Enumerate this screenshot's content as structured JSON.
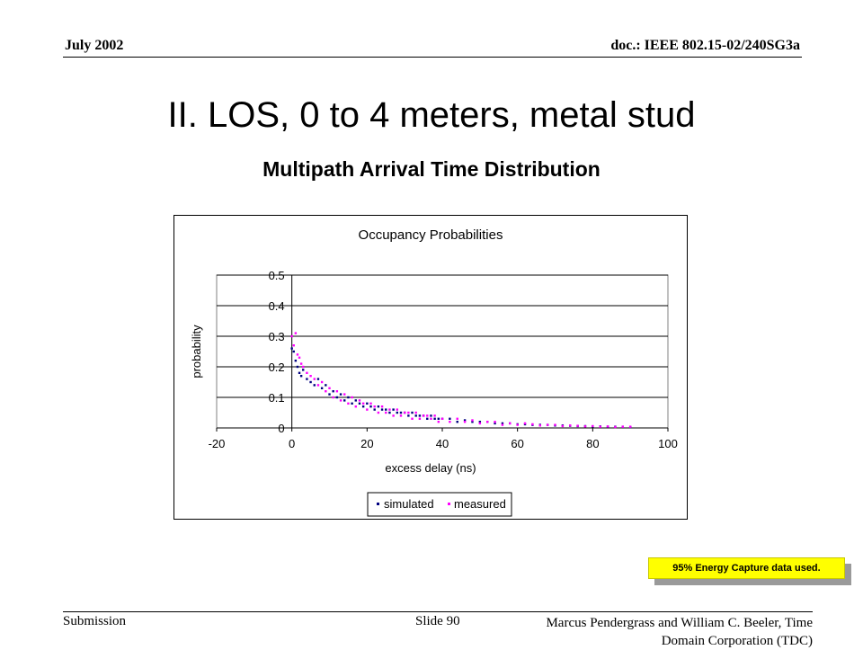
{
  "header": {
    "date": "July 2002",
    "doc": "doc.: IEEE 802.15-02/240SG3a"
  },
  "slide": {
    "title": "II.  LOS, 0 to 4 meters, metal stud",
    "subtitle": "Multipath Arrival Time Distribution"
  },
  "note": "95% Energy Capture data used.",
  "footer": {
    "left": "Submission",
    "center": "Slide 90",
    "right_line1": "Marcus Pendergrass and William  C. Beeler, Time",
    "right_line2": "Domain Corporation (TDC)"
  },
  "colors": {
    "simulated": "#000080",
    "measured": "#ff00ff",
    "note_bg": "#ffff00"
  },
  "chart_data": {
    "type": "scatter",
    "title": "Occupancy Probabilities",
    "xlabel": "excess delay (ns)",
    "ylabel": "probability",
    "xlim": [
      -20,
      100
    ],
    "ylim": [
      0,
      0.5
    ],
    "xticks": [
      "-20",
      "0",
      "20",
      "40",
      "60",
      "80",
      "100"
    ],
    "yticks": [
      "0",
      "0.1",
      "0.2",
      "0.3",
      "0.4",
      "0.5"
    ],
    "grid": "horizontal",
    "legend": "bottom-center",
    "series": [
      {
        "name": "simulated",
        "color": "#000080",
        "points": [
          [
            0,
            0.26
          ],
          [
            0.5,
            0.25
          ],
          [
            1,
            0.22
          ],
          [
            1.5,
            0.2
          ],
          [
            2,
            0.18
          ],
          [
            2.5,
            0.17
          ],
          [
            3,
            0.19
          ],
          [
            4,
            0.16
          ],
          [
            5,
            0.15
          ],
          [
            6,
            0.14
          ],
          [
            7,
            0.16
          ],
          [
            8,
            0.13
          ],
          [
            9,
            0.14
          ],
          [
            10,
            0.11
          ],
          [
            11,
            0.12
          ],
          [
            12,
            0.1
          ],
          [
            13,
            0.11
          ],
          [
            14,
            0.09
          ],
          [
            15,
            0.1
          ],
          [
            16,
            0.08
          ],
          [
            17,
            0.09
          ],
          [
            18,
            0.08
          ],
          [
            19,
            0.07
          ],
          [
            20,
            0.08
          ],
          [
            21,
            0.07
          ],
          [
            22,
            0.06
          ],
          [
            23,
            0.07
          ],
          [
            24,
            0.06
          ],
          [
            25,
            0.06
          ],
          [
            26,
            0.05
          ],
          [
            27,
            0.06
          ],
          [
            28,
            0.05
          ],
          [
            29,
            0.05
          ],
          [
            30,
            0.05
          ],
          [
            31,
            0.04
          ],
          [
            32,
            0.05
          ],
          [
            33,
            0.04
          ],
          [
            34,
            0.04
          ],
          [
            35,
            0.04
          ],
          [
            36,
            0.03
          ],
          [
            37,
            0.04
          ],
          [
            38,
            0.03
          ],
          [
            39,
            0.03
          ],
          [
            40,
            0.03
          ],
          [
            42,
            0.03
          ],
          [
            44,
            0.02
          ],
          [
            46,
            0.025
          ],
          [
            48,
            0.02
          ],
          [
            50,
            0.02
          ],
          [
            52,
            0.02
          ],
          [
            54,
            0.015
          ],
          [
            56,
            0.015
          ],
          [
            58,
            0.015
          ],
          [
            60,
            0.012
          ],
          [
            62,
            0.012
          ],
          [
            64,
            0.01
          ],
          [
            66,
            0.01
          ],
          [
            68,
            0.01
          ],
          [
            70,
            0.008
          ],
          [
            72,
            0.008
          ],
          [
            74,
            0.007
          ],
          [
            76,
            0.006
          ],
          [
            78,
            0.006
          ],
          [
            80,
            0.005
          ],
          [
            82,
            0.005
          ],
          [
            84,
            0.004
          ],
          [
            86,
            0.004
          ],
          [
            88,
            0.004
          ],
          [
            90,
            0.003
          ]
        ]
      },
      {
        "name": "measured",
        "color": "#ff00ff",
        "points": [
          [
            0,
            0.3
          ],
          [
            0.5,
            0.27
          ],
          [
            1,
            0.31
          ],
          [
            1.5,
            0.24
          ],
          [
            2,
            0.23
          ],
          [
            2.5,
            0.21
          ],
          [
            3,
            0.2
          ],
          [
            4,
            0.18
          ],
          [
            5,
            0.17
          ],
          [
            6,
            0.16
          ],
          [
            7,
            0.14
          ],
          [
            8,
            0.15
          ],
          [
            9,
            0.12
          ],
          [
            10,
            0.13
          ],
          [
            11,
            0.1
          ],
          [
            12,
            0.12
          ],
          [
            13,
            0.09
          ],
          [
            14,
            0.11
          ],
          [
            15,
            0.08
          ],
          [
            16,
            0.1
          ],
          [
            17,
            0.07
          ],
          [
            18,
            0.09
          ],
          [
            19,
            0.08
          ],
          [
            20,
            0.06
          ],
          [
            21,
            0.08
          ],
          [
            22,
            0.07
          ],
          [
            23,
            0.05
          ],
          [
            24,
            0.07
          ],
          [
            25,
            0.05
          ],
          [
            26,
            0.06
          ],
          [
            27,
            0.04
          ],
          [
            28,
            0.06
          ],
          [
            29,
            0.04
          ],
          [
            30,
            0.05
          ],
          [
            31,
            0.05
          ],
          [
            32,
            0.03
          ],
          [
            33,
            0.05
          ],
          [
            34,
            0.03
          ],
          [
            35,
            0.04
          ],
          [
            36,
            0.04
          ],
          [
            37,
            0.03
          ],
          [
            38,
            0.04
          ],
          [
            39,
            0.02
          ],
          [
            40,
            0.03
          ],
          [
            42,
            0.02
          ],
          [
            44,
            0.03
          ],
          [
            46,
            0.02
          ],
          [
            48,
            0.025
          ],
          [
            50,
            0.015
          ],
          [
            52,
            0.02
          ],
          [
            54,
            0.02
          ],
          [
            56,
            0.01
          ],
          [
            58,
            0.015
          ],
          [
            60,
            0.01
          ],
          [
            62,
            0.015
          ],
          [
            64,
            0.012
          ],
          [
            66,
            0.008
          ],
          [
            68,
            0.01
          ],
          [
            70,
            0.01
          ],
          [
            72,
            0.006
          ],
          [
            74,
            0.008
          ],
          [
            76,
            0.007
          ],
          [
            78,
            0.005
          ],
          [
            80,
            0.006
          ],
          [
            82,
            0.004
          ],
          [
            84,
            0.005
          ],
          [
            86,
            0.003
          ],
          [
            88,
            0.004
          ],
          [
            90,
            0.004
          ]
        ]
      }
    ]
  }
}
